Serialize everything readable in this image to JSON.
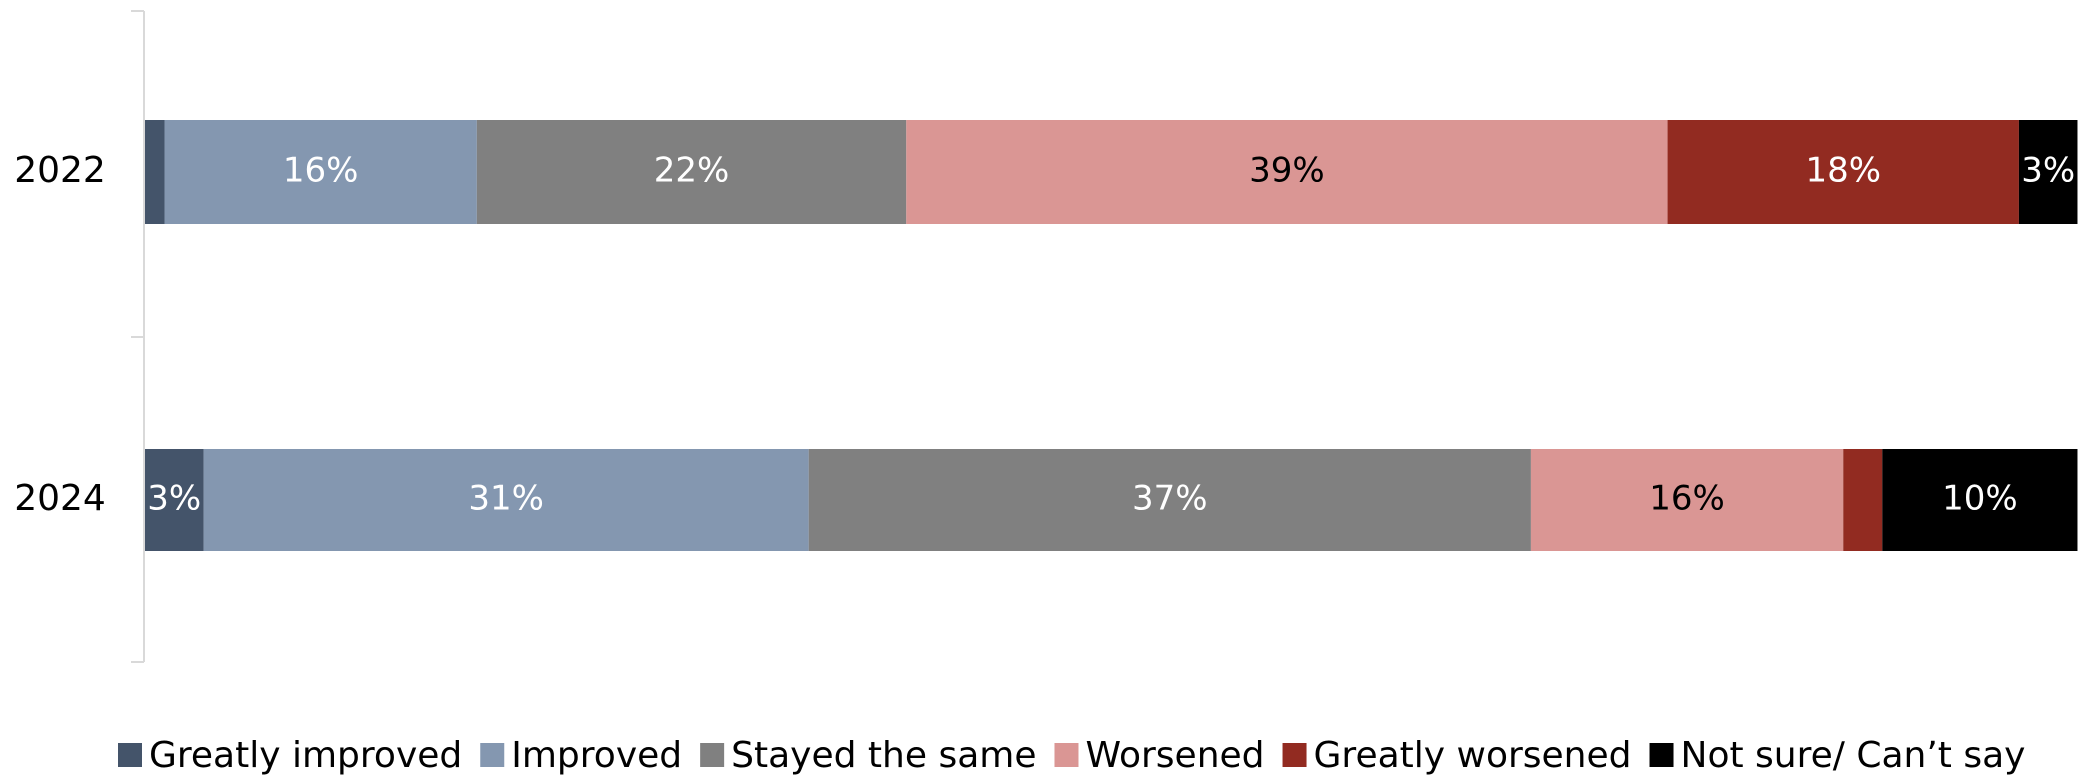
{
  "chart_data": {
    "type": "stacked_barh",
    "categories": [
      "2022",
      "2024"
    ],
    "xlim": [
      0,
      100
    ],
    "series": [
      {
        "name": "Greatly improved",
        "color": "#44546a",
        "label_color": "#ffffff",
        "values": [
          1,
          3
        ],
        "value_labels": [
          null,
          "3%"
        ]
      },
      {
        "name": "Improved",
        "color": "#8497b0",
        "label_color": "#ffffff",
        "values": [
          16,
          31
        ],
        "value_labels": [
          "16%",
          "31%"
        ]
      },
      {
        "name": "Stayed the same",
        "color": "#808080",
        "label_color": "#ffffff",
        "values": [
          22,
          37
        ],
        "value_labels": [
          "22%",
          "37%"
        ]
      },
      {
        "name": "Worsened",
        "color": "#da9694",
        "label_color": "#000000",
        "values": [
          39,
          16
        ],
        "value_labels": [
          "39%",
          "16%"
        ]
      },
      {
        "name": "Greatly worsened",
        "color": "#922b21",
        "label_color": "#ffffff",
        "values": [
          18,
          2
        ],
        "value_labels": [
          "18%",
          null
        ]
      },
      {
        "name": "Not sure/ Can’t say",
        "color": "#000000",
        "label_color": "#ffffff",
        "values": [
          3,
          10
        ],
        "value_labels": [
          "3%",
          "10%"
        ]
      }
    ]
  }
}
